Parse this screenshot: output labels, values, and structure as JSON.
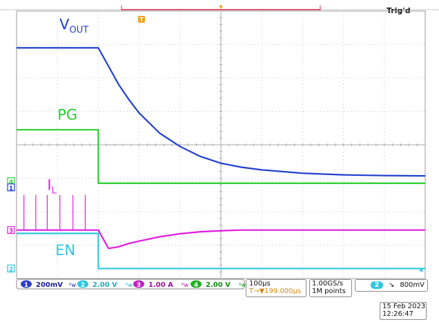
{
  "header": {
    "trigger_status": "Trig'd"
  },
  "chart_data": {
    "type": "line",
    "title": "",
    "xlabel": "",
    "ylabel": "",
    "grid": true,
    "time_unit": "µs",
    "xlim": [
      -200,
      800
    ],
    "ylim_divisions": [
      -4,
      4
    ],
    "x": [
      -200,
      -50,
      0,
      25,
      50,
      75,
      100,
      150,
      200,
      250,
      300,
      350,
      400,
      500,
      600,
      700,
      800
    ],
    "series": [
      {
        "name": "VOUT",
        "color": "#1f3fd0",
        "values_div": [
          2.9,
          2.9,
          2.9,
          2.35,
          1.8,
          1.35,
          0.95,
          0.35,
          -0.05,
          -0.35,
          -0.55,
          -0.67,
          -0.75,
          -0.85,
          -0.9,
          -0.92,
          -0.93
        ]
      },
      {
        "name": "PG",
        "color": "#25d02a",
        "values_div": [
          0.45,
          0.45,
          0.45,
          -1.15,
          -1.15,
          -1.15,
          -1.15,
          -1.15,
          -1.15,
          -1.15,
          -1.15,
          -1.15,
          -1.15,
          -1.15,
          -1.15,
          -1.15,
          -1.15
        ]
      },
      {
        "name": "IL",
        "color": "#e01ae0",
        "values_div": [
          -2.55,
          -2.55,
          -2.55,
          -3.1,
          -3.05,
          -2.95,
          -2.88,
          -2.75,
          -2.66,
          -2.6,
          -2.57,
          -2.55,
          -2.55,
          -2.55,
          -2.55,
          -2.55,
          -2.55
        ],
        "spikes_x": [
          -182,
          -153,
          -125,
          -94,
          -62,
          -32
        ],
        "spike_top_div": -1.5
      },
      {
        "name": "EN",
        "color": "#2cc8e0",
        "values_div": [
          -2.65,
          -2.65,
          -2.65,
          -3.7,
          -3.7,
          -3.7,
          -3.7,
          -3.7,
          -3.7,
          -3.7,
          -3.7,
          -3.7,
          -3.7,
          -3.7,
          -3.7,
          -3.7,
          -3.7
        ]
      }
    ],
    "waveform_labels": [
      {
        "text": "V",
        "sub": "OUT",
        "color": "#1f3fd0",
        "x": -95,
        "y_div": 3.45
      },
      {
        "text": "PG",
        "color": "#25d02a",
        "x": -100,
        "y_div": 0.75
      },
      {
        "text": "I",
        "sub": "L",
        "color": "#e01ae0",
        "x": -125,
        "y_div": -1.35
      },
      {
        "text": "EN",
        "color": "#2cc8e0",
        "x": -105,
        "y_div": -3.3
      }
    ]
  },
  "ground_markers": [
    {
      "label": "4",
      "color": "#25d02a"
    },
    {
      "label": "1",
      "color": "#1f3fd0"
    },
    {
      "label": "3",
      "color": "#e01ae0"
    },
    {
      "label": "2",
      "color": "#2cc8e0"
    }
  ],
  "trigger_marker": {
    "label": "T",
    "color": "#f0a020"
  },
  "channels": [
    {
      "num": "1",
      "scale": "200mV",
      "color": "#2f3fc8",
      "text_color": "#2020a0"
    },
    {
      "num": "2",
      "scale": "2.00 V",
      "color": "#2cc8e0",
      "text_color": "#20a8c0"
    },
    {
      "num": "3",
      "scale": "1.00 A",
      "color": "#c020c0",
      "text_color": "#a010a0"
    },
    {
      "num": "4",
      "scale": "2.00 V",
      "color": "#20b020",
      "text_color": "#109010"
    }
  ],
  "bw_mark": "ᴮw",
  "timebase": {
    "scale": "100µs",
    "trigger_pos": "T→▼199.000µs"
  },
  "acquisition": {
    "rate": "1.00GS/s",
    "record": "1M points"
  },
  "trigger": {
    "channel": "2",
    "slope": "↘",
    "level": "800mV"
  },
  "datetime": {
    "date": "15 Feb 2023",
    "time": "12:26:47"
  }
}
